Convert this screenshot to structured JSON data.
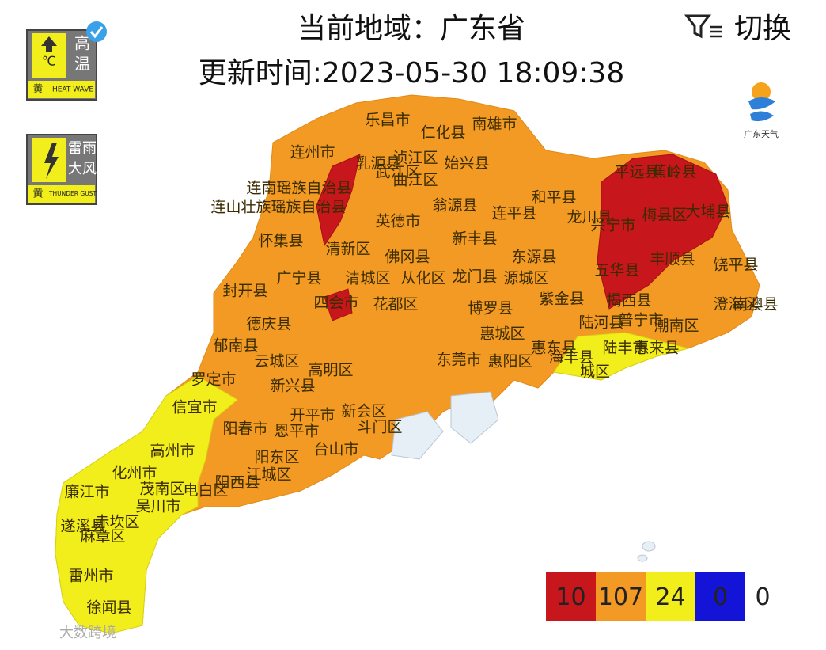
{
  "header": {
    "title": "当前地域：广东省",
    "updated": "更新时间:2023-05-30 18:09:38",
    "switch": "切换"
  },
  "badges": [
    {
      "symbol": "℃",
      "chars": [
        "高",
        "温"
      ],
      "level": "黄",
      "label": "HEAT WAVE"
    },
    {
      "chars": [
        "雷雨",
        "大风"
      ],
      "level": "黄",
      "label": "THUNDER GUST"
    }
  ],
  "logo": "广东天气",
  "labels": [
    "乐昌市",
    "仁化县",
    "南雄市",
    "连州市",
    "乳源县",
    "浈江区",
    "始兴县",
    "武江区",
    "曲江区",
    "连南瑶族自治县",
    "连山壮族瑶族自治县",
    "英德市",
    "翁源县",
    "和平县",
    "连平县",
    "龙川县",
    "平远县",
    "蕉岭县",
    "梅县区",
    "大埔县",
    "兴宁市",
    "怀集县",
    "清新区",
    "新丰县",
    "佛冈县",
    "东源县",
    "五华县",
    "丰顺县",
    "饶平县",
    "封开县",
    "广宁县",
    "清城区",
    "从化区",
    "龙门县",
    "源城区",
    "紫金县",
    "揭西县",
    "四会市",
    "花都区",
    "博罗县",
    "澄海区",
    "南澳县",
    "德庆县",
    "惠城区",
    "陆河县",
    "普宁市",
    "潮南区",
    "郁南县",
    "云城区",
    "高明区",
    "惠东县",
    "海丰县",
    "陆丰市",
    "惠来县",
    "罗定市",
    "新兴县",
    "东莞市",
    "惠阳区",
    "城区",
    "信宜市",
    "开平市",
    "新会区",
    "阳春市",
    "恩平市",
    "斗门区",
    "台山市",
    "高州市",
    "阳东区",
    "化州市",
    "江城区",
    "茂南区",
    "电白区",
    "阳西县",
    "廉江市",
    "吴川市",
    "遂溪县",
    "赤坎区",
    "麻章区",
    "雷州市",
    "徐闻县"
  ],
  "legend": [
    {
      "color": "#c8161d",
      "count": 10
    },
    {
      "color": "#f29a23",
      "count": 107
    },
    {
      "color": "#f2ee1c",
      "count": 24
    },
    {
      "color": "#1414d8",
      "count": 0
    },
    {
      "color": "#ffffff",
      "count": 0
    }
  ],
  "watermark": "大数跨境"
}
